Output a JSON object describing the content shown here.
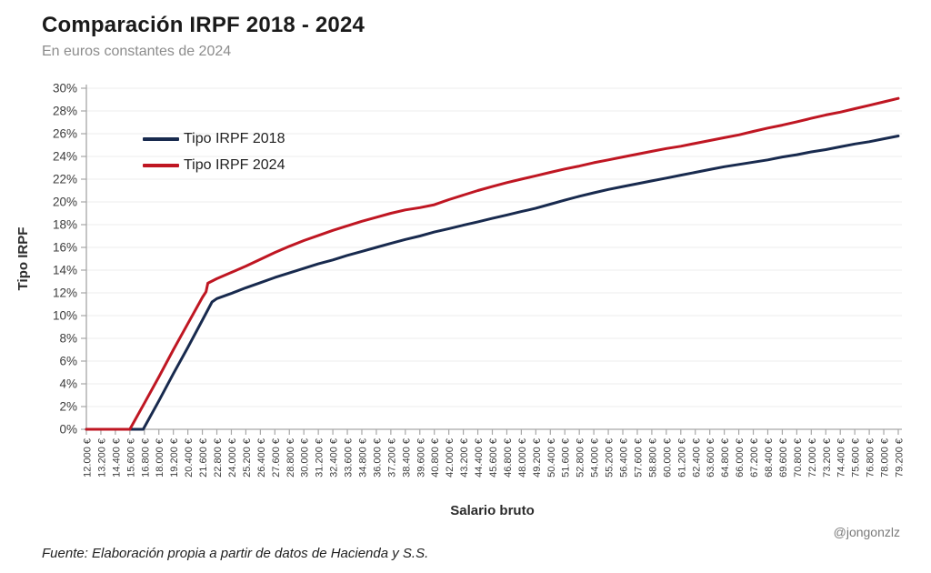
{
  "header": {
    "title": "Comparación IRPF 2018 - 2024",
    "subtitle": "En euros constantes de 2024"
  },
  "chart_data": {
    "type": "line",
    "title": "Comparación IRPF 2018 - 2024",
    "subtitle": "En euros constantes de 2024",
    "xlabel": "Salario bruto",
    "ylabel": "Tipo IRPF",
    "ylim": [
      0,
      30
    ],
    "x_min": 12000,
    "x_max": 79200,
    "x_tick_step": 1200,
    "grid": "horizontal-light",
    "legend_position": "top-left-inside",
    "y_tick_labels": [
      "0%",
      "2%",
      "4%",
      "6%",
      "8%",
      "10%",
      "12%",
      "14%",
      "16%",
      "18%",
      "20%",
      "22%",
      "24%",
      "26%",
      "28%",
      "30%"
    ],
    "x_tick_labels": [
      "12.000 €",
      "13.200 €",
      "14.400 €",
      "15.600 €",
      "16.800 €",
      "18.000 €",
      "19.200 €",
      "20.400 €",
      "21.600 €",
      "22.800 €",
      "24.000 €",
      "25.200 €",
      "26.400 €",
      "27.600 €",
      "28.800 €",
      "30.000 €",
      "31.200 €",
      "32.400 €",
      "33.600 €",
      "34.800 €",
      "36.000 €",
      "37.200 €",
      "38.400 €",
      "39.600 €",
      "40.800 €",
      "42.000 €",
      "43.200 €",
      "44.400 €",
      "45.600 €",
      "46.800 €",
      "48.000 €",
      "49.200 €",
      "50.400 €",
      "51.600 €",
      "52.800 €",
      "54.000 €",
      "55.200 €",
      "56.400 €",
      "57.600 €",
      "58.800 €",
      "60.000 €",
      "61.200 €",
      "62.400 €",
      "63.600 €",
      "64.800 €",
      "66.000 €",
      "67.200 €",
      "68.400 €",
      "69.600 €",
      "70.800 €",
      "72.000 €",
      "73.200 €",
      "74.400 €",
      "75.600 €",
      "76.800 €",
      "78.000 €",
      "79.200 €"
    ],
    "series": [
      {
        "name": "Tipo IRPF 2018",
        "color": "#182a4e",
        "points": [
          [
            12000,
            0
          ],
          [
            13200,
            0
          ],
          [
            14400,
            0
          ],
          [
            15600,
            0
          ],
          [
            16700,
            0
          ],
          [
            18000,
            2.5
          ],
          [
            19200,
            4.9
          ],
          [
            20400,
            7.2
          ],
          [
            21600,
            9.6
          ],
          [
            22400,
            11.2
          ],
          [
            22800,
            11.5
          ],
          [
            24000,
            11.95
          ],
          [
            25200,
            12.45
          ],
          [
            26400,
            12.9
          ],
          [
            27600,
            13.35
          ],
          [
            28800,
            13.75
          ],
          [
            30000,
            14.15
          ],
          [
            31200,
            14.55
          ],
          [
            32400,
            14.9
          ],
          [
            33600,
            15.3
          ],
          [
            34800,
            15.65
          ],
          [
            36000,
            16.0
          ],
          [
            37200,
            16.35
          ],
          [
            38400,
            16.7
          ],
          [
            39600,
            17.0
          ],
          [
            40800,
            17.35
          ],
          [
            42000,
            17.65
          ],
          [
            43200,
            17.95
          ],
          [
            44400,
            18.25
          ],
          [
            45600,
            18.55
          ],
          [
            46800,
            18.85
          ],
          [
            48000,
            19.15
          ],
          [
            48600,
            19.3
          ],
          [
            49200,
            19.45
          ],
          [
            50400,
            19.8
          ],
          [
            51600,
            20.15
          ],
          [
            52800,
            20.5
          ],
          [
            54000,
            20.8
          ],
          [
            55200,
            21.1
          ],
          [
            56400,
            21.35
          ],
          [
            57600,
            21.6
          ],
          [
            58800,
            21.85
          ],
          [
            60000,
            22.1
          ],
          [
            61200,
            22.35
          ],
          [
            62400,
            22.6
          ],
          [
            63600,
            22.85
          ],
          [
            64800,
            23.1
          ],
          [
            66000,
            23.3
          ],
          [
            67200,
            23.5
          ],
          [
            68400,
            23.7
          ],
          [
            69600,
            23.95
          ],
          [
            70800,
            24.15
          ],
          [
            72000,
            24.4
          ],
          [
            73200,
            24.6
          ],
          [
            74400,
            24.85
          ],
          [
            75600,
            25.1
          ],
          [
            76800,
            25.3
          ],
          [
            78000,
            25.55
          ],
          [
            79200,
            25.8
          ]
        ]
      },
      {
        "name": "Tipo IRPF 2024",
        "color": "#bf1622",
        "points": [
          [
            12000,
            0
          ],
          [
            13200,
            0
          ],
          [
            14400,
            0
          ],
          [
            15600,
            0
          ],
          [
            16800,
            2.3
          ],
          [
            18000,
            4.6
          ],
          [
            19200,
            7.0
          ],
          [
            20400,
            9.3
          ],
          [
            21600,
            11.6
          ],
          [
            21900,
            12.1
          ],
          [
            22050,
            12.85
          ],
          [
            22800,
            13.25
          ],
          [
            24000,
            13.8
          ],
          [
            25200,
            14.35
          ],
          [
            26400,
            14.95
          ],
          [
            27600,
            15.55
          ],
          [
            28800,
            16.1
          ],
          [
            30000,
            16.6
          ],
          [
            31200,
            17.05
          ],
          [
            32400,
            17.5
          ],
          [
            33600,
            17.9
          ],
          [
            34800,
            18.3
          ],
          [
            36000,
            18.65
          ],
          [
            37200,
            19.0
          ],
          [
            38400,
            19.3
          ],
          [
            39600,
            19.5
          ],
          [
            40800,
            19.75
          ],
          [
            42000,
            20.2
          ],
          [
            43200,
            20.6
          ],
          [
            44400,
            21.0
          ],
          [
            45600,
            21.35
          ],
          [
            46800,
            21.7
          ],
          [
            48000,
            22.0
          ],
          [
            49200,
            22.3
          ],
          [
            50400,
            22.6
          ],
          [
            51600,
            22.9
          ],
          [
            52800,
            23.15
          ],
          [
            54000,
            23.45
          ],
          [
            55200,
            23.7
          ],
          [
            56400,
            23.95
          ],
          [
            57600,
            24.2
          ],
          [
            58800,
            24.45
          ],
          [
            60000,
            24.7
          ],
          [
            61200,
            24.9
          ],
          [
            62400,
            25.15
          ],
          [
            63600,
            25.4
          ],
          [
            64800,
            25.65
          ],
          [
            66000,
            25.9
          ],
          [
            67200,
            26.2
          ],
          [
            68400,
            26.5
          ],
          [
            69600,
            26.75
          ],
          [
            70800,
            27.05
          ],
          [
            72000,
            27.35
          ],
          [
            73200,
            27.65
          ],
          [
            74400,
            27.9
          ],
          [
            75600,
            28.2
          ],
          [
            76800,
            28.5
          ],
          [
            78000,
            28.8
          ],
          [
            79200,
            29.1
          ]
        ]
      }
    ],
    "colors": {
      "axis_line": "#a6a6a6",
      "grid_line": "#ececec",
      "tick_text": "#3c3c3c",
      "axis_title": "#2b2b2b"
    }
  },
  "footer": {
    "source": "Fuente: Elaboración propia a partir de datos de Hacienda y S.S.",
    "watermark": "@jongonzlz"
  }
}
